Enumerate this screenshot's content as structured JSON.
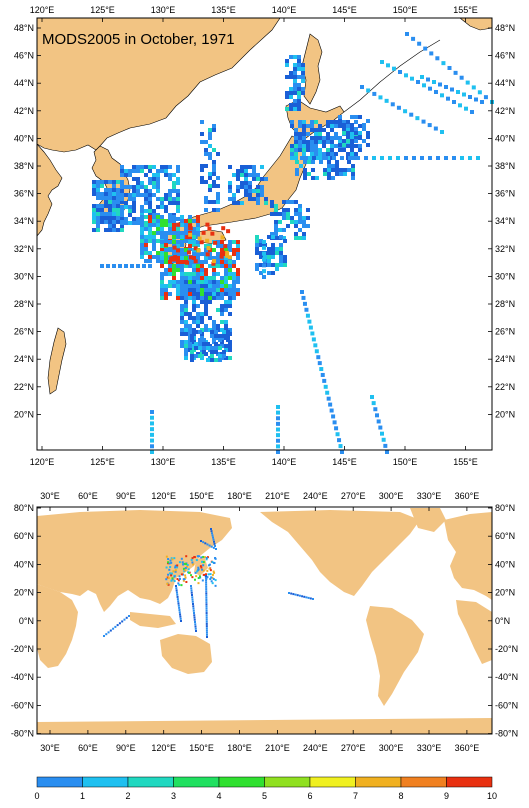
{
  "map_top": {
    "title": "MODS2005 in October, 1971",
    "lon_labels": [
      "120°E",
      "125°E",
      "130°E",
      "135°E",
      "140°E",
      "145°E",
      "150°E",
      "155°E"
    ],
    "lat_labels": [
      "48°N",
      "46°N",
      "44°N",
      "42°N",
      "40°N",
      "38°N",
      "36°N",
      "34°N",
      "32°N",
      "30°N",
      "28°N",
      "26°N",
      "24°N",
      "22°N",
      "20°N"
    ],
    "lon_range": [
      119,
      158
    ],
    "lat_range": [
      18.5,
      49.5
    ]
  },
  "map_bottom": {
    "lon_labels": [
      "30°E",
      "60°E",
      "90°E",
      "120°E",
      "150°E",
      "180°E",
      "210°E",
      "240°E",
      "270°E",
      "300°E",
      "330°E",
      "360°E"
    ],
    "lat_labels": [
      "80°N",
      "60°N",
      "40°N",
      "20°N",
      "0°N",
      "-20°N",
      "-40°N",
      "-60°N",
      "-80°N"
    ],
    "lon_range": [
      20,
      380
    ],
    "lat_range": [
      -80,
      80
    ]
  },
  "colorbar": {
    "labels": [
      "0",
      "1",
      "2",
      "3",
      "4",
      "5",
      "6",
      "7",
      "8",
      "9",
      "10"
    ],
    "colors": [
      "#1a5fd6",
      "#2a8ef0",
      "#1fc0f0",
      "#20d8c0",
      "#20e060",
      "#30e030",
      "#90e020",
      "#f0f020",
      "#f0b020",
      "#f08020",
      "#e83010"
    ]
  },
  "colors": {
    "land": "#f2c483",
    "ocean": "#ffffff",
    "obs_low": "#1f6fe8",
    "obs_mid": "#22d0e8",
    "obs_high": "#e83010"
  }
}
